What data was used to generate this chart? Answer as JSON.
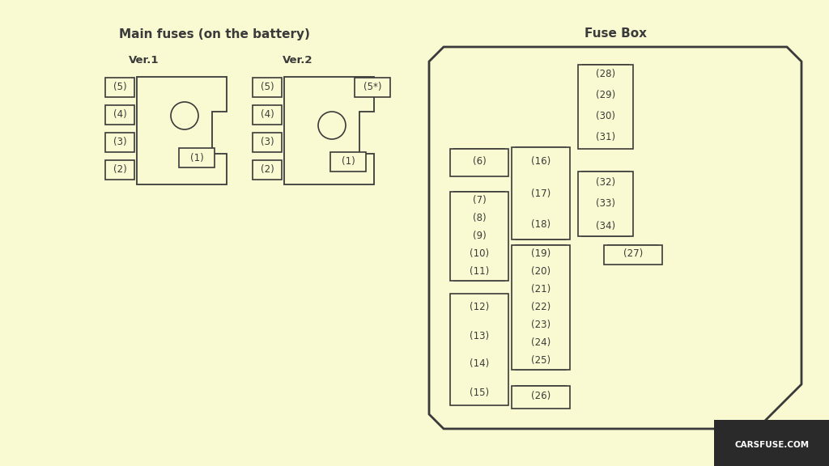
{
  "bg_color": "#FAFAD2",
  "line_color": "#3a3a3a",
  "text_color": "#3a3a3a",
  "title_left": "Main fuses (on the battery)",
  "title_right": "Fuse Box",
  "watermark": "CARSFUSE.COM",
  "ver1_label": "Ver.1",
  "ver2_label": "Ver.2"
}
